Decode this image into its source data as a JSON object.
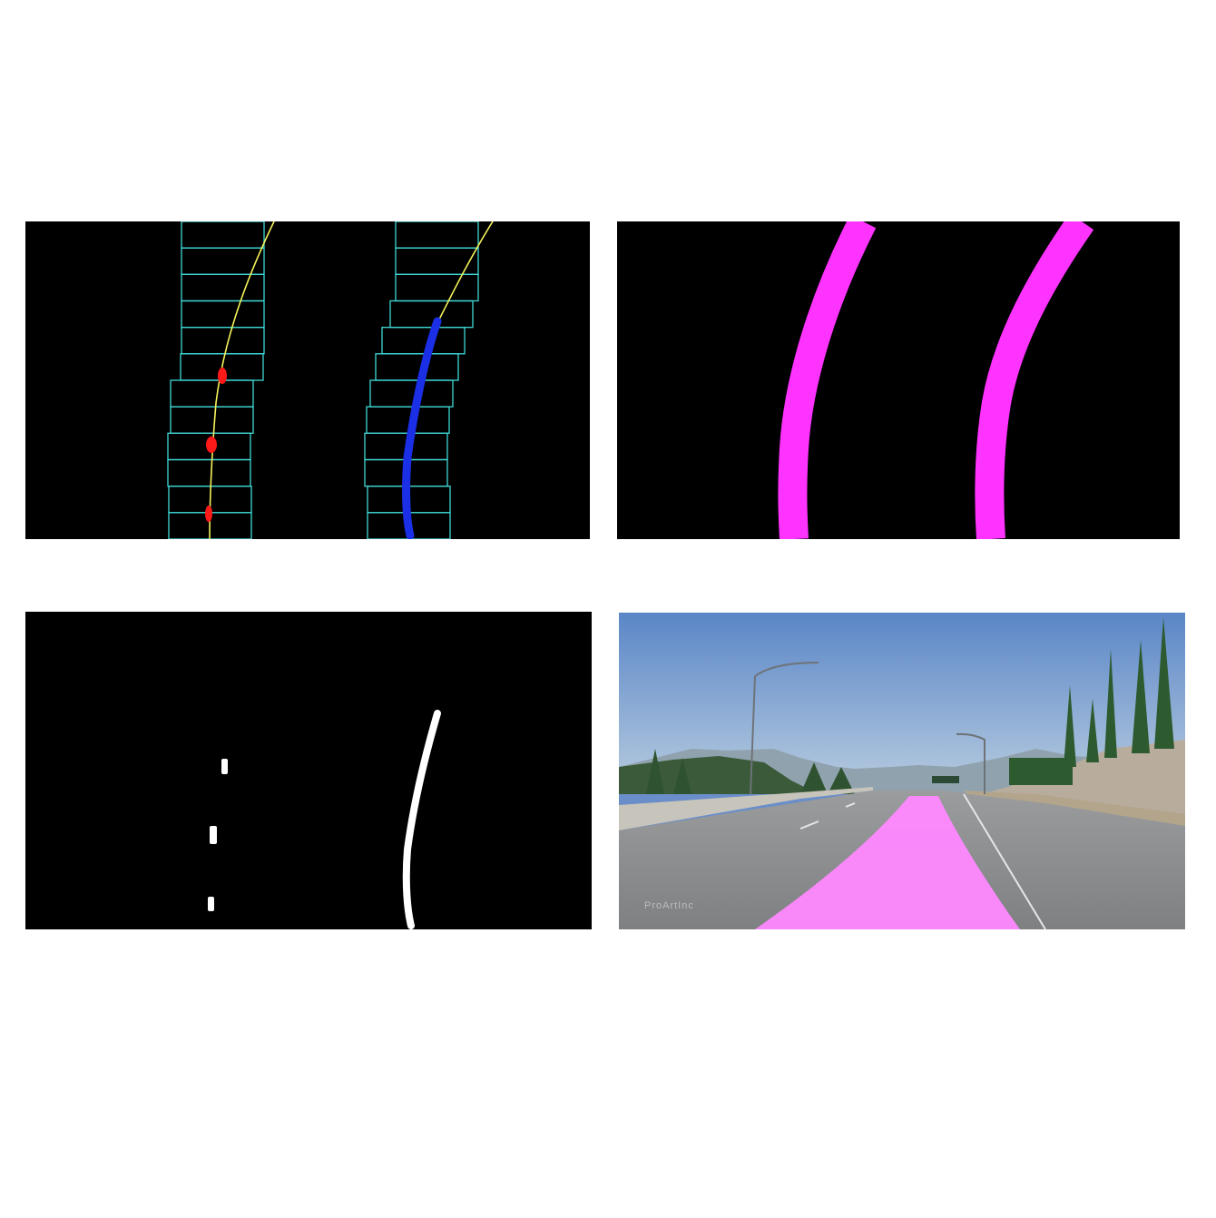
{
  "figure": {
    "panels": [
      {
        "id": "sliding-window-search",
        "background": "#000000"
      },
      {
        "id": "fitted-lane-lines",
        "background": "#000000"
      },
      {
        "id": "binary-threshold",
        "background": "#000000"
      },
      {
        "id": "lane-overlay-road",
        "background": "#6a8ec9"
      }
    ],
    "colors": {
      "window_box": "#3fd9d6",
      "fit_curve": "#f5f25a",
      "left_pixels": "#ff1a1a",
      "right_pixels": "#1a2fe6",
      "lane_line": "#ff33ff",
      "lane_fill": "#ff88ff",
      "binary_pixels": "#ffffff"
    },
    "watermark": "ProArtInc"
  }
}
